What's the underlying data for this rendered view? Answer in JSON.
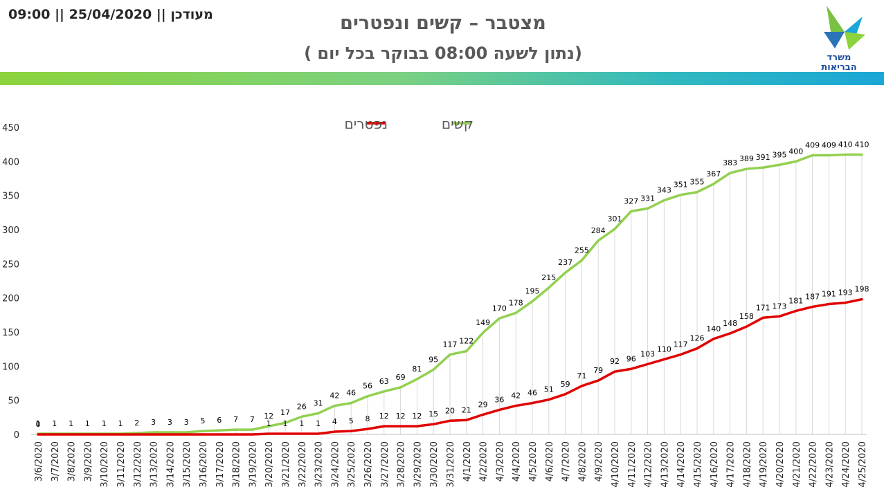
{
  "header": {
    "updated": "09:00 || 25/04/2020 || מעודכן",
    "title": "מצטבר – קשים ונפטרים",
    "subtitle": "( נתון לשעה 08:00 בבוקר בכל יום)",
    "logo_line1": "משרד",
    "logo_line2": "הבריאות"
  },
  "colors": {
    "severe": "#92d050",
    "deceased": "#e00000",
    "grid": "#d9d9d9",
    "text": "#262626"
  },
  "chart_data": {
    "type": "line",
    "title": "",
    "xlabel": "",
    "ylabel": "",
    "ylim": [
      0,
      450
    ],
    "yticks": [
      0,
      50,
      100,
      150,
      200,
      250,
      300,
      350,
      400,
      450
    ],
    "legend_position": "top-center",
    "categories": [
      "3/6/2020",
      "3/7/2020",
      "3/8/2020",
      "3/9/2020",
      "3/10/2020",
      "3/11/2020",
      "3/12/2020",
      "3/13/2020",
      "3/14/2020",
      "3/15/2020",
      "3/16/2020",
      "3/17/2020",
      "3/18/2020",
      "3/19/2020",
      "3/20/2020",
      "3/21/2020",
      "3/22/2020",
      "3/23/2020",
      "3/24/2020",
      "3/25/2020",
      "3/26/2020",
      "3/27/2020",
      "3/28/2020",
      "3/29/2020",
      "3/30/2020",
      "3/31/2020",
      "4/1/2020",
      "4/2/2020",
      "4/3/2020",
      "4/4/2020",
      "4/5/2020",
      "4/6/2020",
      "4/7/2020",
      "4/8/2020",
      "4/9/2020",
      "4/10/2020",
      "4/11/2020",
      "4/12/2020",
      "4/13/2020",
      "4/14/2020",
      "4/15/2020",
      "4/16/2020",
      "4/17/2020",
      "4/18/2020",
      "4/19/2020",
      "4/20/2020",
      "4/21/2020",
      "4/22/2020",
      "4/23/2020",
      "4/24/2020",
      "4/25/2020"
    ],
    "series": [
      {
        "name": "קשים",
        "color": "#92d050",
        "values": [
          1,
          1,
          1,
          1,
          1,
          1,
          2,
          3,
          3,
          3,
          5,
          6,
          7,
          7,
          12,
          17,
          26,
          31,
          42,
          46,
          56,
          63,
          69,
          81,
          95,
          117,
          122,
          149,
          170,
          178,
          195,
          215,
          237,
          255,
          284,
          301,
          327,
          331,
          343,
          351,
          355,
          367,
          383,
          389,
          391,
          395,
          400,
          409,
          409,
          410,
          410
        ]
      },
      {
        "name": "נפטרים",
        "color": "#e00000",
        "values": [
          0,
          0,
          0,
          0,
          0,
          0,
          0,
          0,
          0,
          0,
          0,
          0,
          0,
          0,
          1,
          1,
          1,
          1,
          4,
          5,
          8,
          12,
          12,
          12,
          15,
          20,
          21,
          29,
          36,
          42,
          46,
          51,
          59,
          71,
          79,
          92,
          96,
          103,
          110,
          117,
          126,
          140,
          148,
          158,
          171,
          173,
          181,
          187,
          191,
          193,
          198
        ],
        "labels": [
          "0",
          "",
          "",
          "",
          "",
          "",
          "",
          "",
          "",
          "",
          "",
          "",
          "",
          "",
          "1",
          "1",
          "1",
          "1",
          "4",
          "5",
          "8",
          "12",
          "12",
          "12",
          "15",
          "20",
          "21",
          "29",
          "36",
          "42",
          "46",
          "51",
          "59",
          "71",
          "79",
          "92",
          "96",
          "103",
          "110",
          "117",
          "126",
          "140",
          "148",
          "158",
          "171",
          "173",
          "181",
          "187",
          "191",
          "193",
          "198"
        ]
      }
    ]
  }
}
